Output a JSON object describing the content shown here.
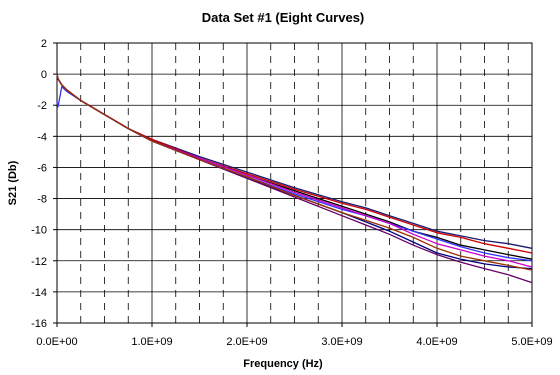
{
  "chart_data": {
    "type": "line",
    "title": "Data Set #1 (Eight Curves)",
    "xlabel": "Frequency (Hz)",
    "ylabel": "S21 (Db)",
    "xlim": [
      0,
      5000000000
    ],
    "ylim": [
      -16,
      2
    ],
    "x_ticks": [
      0,
      1000000000,
      2000000000,
      3000000000,
      4000000000,
      5000000000
    ],
    "x_tick_labels": [
      "0.0E+00",
      "1.0E+09",
      "2.0E+09",
      "3.0E+09",
      "4.0E+09",
      "5.0E+09"
    ],
    "y_ticks": [
      2,
      0,
      -2,
      -4,
      -6,
      -8,
      -10,
      -12,
      -14,
      -16
    ],
    "y_tick_labels": [
      "2",
      "0",
      "-2",
      "-4",
      "-6",
      "-8",
      "-10",
      "-12",
      "-14",
      "-16"
    ],
    "grid": {
      "major": true,
      "minor_dashed_x_step": 250000000
    },
    "legend": "none",
    "x": [
      0,
      10000000,
      50000000,
      100000000,
      250000000,
      500000000,
      750000000,
      1000000000,
      1500000000,
      2000000000,
      2500000000,
      3000000000,
      3250000000,
      3500000000,
      3750000000,
      4000000000,
      4250000000,
      4500000000,
      4750000000,
      5000000000
    ],
    "series": [
      {
        "color": "#1a1a6e",
        "values": [
          0,
          -0.3,
          -0.7,
          -1.0,
          -1.7,
          -2.6,
          -3.5,
          -4.2,
          -5.3,
          -6.3,
          -7.3,
          -8.2,
          -8.6,
          -9.1,
          -9.6,
          -10.1,
          -10.4,
          -10.7,
          -10.9,
          -11.2
        ]
      },
      {
        "color": "#cc0000",
        "values": [
          0,
          -0.3,
          -0.7,
          -1.0,
          -1.7,
          -2.6,
          -3.5,
          -4.2,
          -5.4,
          -6.4,
          -7.4,
          -8.3,
          -8.7,
          -9.2,
          -9.7,
          -10.2,
          -10.5,
          -10.9,
          -11.2,
          -11.5
        ]
      },
      {
        "color": "#000000",
        "values": [
          0,
          -0.3,
          -0.7,
          -1.0,
          -1.7,
          -2.6,
          -3.5,
          -4.3,
          -5.4,
          -6.5,
          -7.5,
          -8.5,
          -9.0,
          -9.5,
          -10.1,
          -10.5,
          -11.0,
          -11.3,
          -11.6,
          -11.9
        ]
      },
      {
        "color": "#3333ff",
        "values": [
          -1.8,
          -2.1,
          -0.8,
          -1.1,
          -1.7,
          -2.6,
          -3.5,
          -4.3,
          -5.5,
          -6.6,
          -7.7,
          -8.7,
          -9.1,
          -9.6,
          -10.1,
          -10.6,
          -11.1,
          -11.5,
          -11.8,
          -12.0
        ]
      },
      {
        "color": "#cc00cc",
        "values": [
          0,
          -0.3,
          -0.7,
          -1.0,
          -1.7,
          -2.6,
          -3.5,
          -4.3,
          -5.4,
          -6.5,
          -7.6,
          -8.6,
          -9.1,
          -9.6,
          -10.3,
          -10.9,
          -11.3,
          -11.7,
          -12.0,
          -12.4
        ]
      },
      {
        "color": "#000080",
        "values": [
          0,
          -0.3,
          -0.7,
          -1.0,
          -1.7,
          -2.6,
          -3.5,
          -4.3,
          -5.5,
          -6.7,
          -7.8,
          -8.9,
          -9.5,
          -10.1,
          -10.8,
          -11.5,
          -11.9,
          -12.2,
          -12.4,
          -12.5
        ]
      },
      {
        "color": "#660066",
        "values": [
          0,
          -0.3,
          -0.7,
          -1.0,
          -1.7,
          -2.6,
          -3.5,
          -4.3,
          -5.5,
          -6.7,
          -7.9,
          -9.1,
          -9.7,
          -10.3,
          -11.0,
          -11.6,
          -12.1,
          -12.5,
          -12.9,
          -13.4
        ]
      },
      {
        "color": "#993300",
        "values": [
          0,
          -0.3,
          -0.7,
          -1.0,
          -1.7,
          -2.6,
          -3.5,
          -4.3,
          -5.5,
          -6.6,
          -7.8,
          -8.9,
          -9.4,
          -9.9,
          -10.5,
          -11.2,
          -11.7,
          -12.0,
          -12.3,
          -12.6
        ]
      }
    ]
  }
}
